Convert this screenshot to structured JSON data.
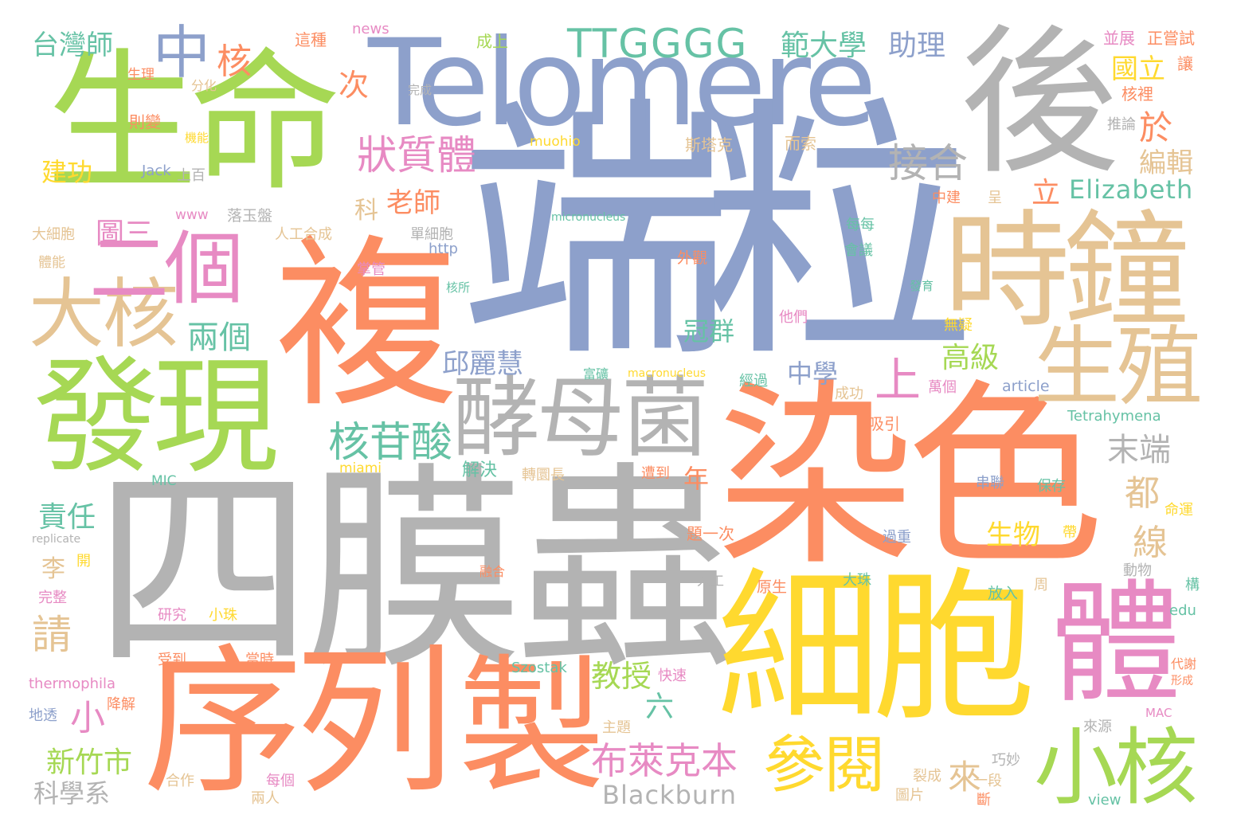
{
  "palette": {
    "green": "#a6d854",
    "orange": "#fc8d62",
    "blue": "#8da0cb",
    "pink": "#e78ac3",
    "yellow": "#ffd92f",
    "tan": "#e5c494",
    "gray": "#b3b3b3",
    "teal": "#66c2a5"
  },
  "words": [
    {
      "text": "端粒",
      "color": "blue"
    },
    {
      "text": "四膜蟲",
      "color": "gray"
    },
    {
      "text": "染色",
      "color": "orange"
    },
    {
      "text": "生命",
      "color": "green"
    },
    {
      "text": "Telomere",
      "color": "blue"
    },
    {
      "text": "後",
      "color": "gray"
    },
    {
      "text": "複",
      "color": "orange"
    },
    {
      "text": "序列",
      "color": "orange"
    },
    {
      "text": "細胞",
      "color": "yellow"
    },
    {
      "text": "時鐘",
      "color": "tan"
    },
    {
      "text": "發現",
      "color": "green"
    },
    {
      "text": "製",
      "color": "orange"
    },
    {
      "text": "體",
      "color": "pink"
    },
    {
      "text": "酵母菌",
      "color": "gray"
    },
    {
      "text": "生殖",
      "color": "tan"
    },
    {
      "text": "小核",
      "color": "green"
    },
    {
      "text": "大核",
      "color": "tan"
    },
    {
      "text": "二個",
      "color": "pink"
    },
    {
      "text": "中",
      "color": "blue"
    },
    {
      "text": "TTGGGG",
      "color": "teal"
    },
    {
      "text": "參閱",
      "color": "yellow"
    },
    {
      "text": "狀質體",
      "color": "pink"
    },
    {
      "text": "核苷酸",
      "color": "teal"
    },
    {
      "text": "布萊克本",
      "color": "pink"
    },
    {
      "text": "Elizabeth",
      "color": "teal"
    },
    {
      "text": "接合",
      "color": "gray"
    },
    {
      "text": "Blackburn",
      "color": "gray"
    },
    {
      "text": "範大學",
      "color": "teal"
    },
    {
      "text": "助理",
      "color": "blue"
    },
    {
      "text": "台灣師",
      "color": "teal"
    },
    {
      "text": "核",
      "color": "orange"
    },
    {
      "text": "次",
      "color": "orange"
    },
    {
      "text": "於",
      "color": "orange"
    },
    {
      "text": "國立",
      "color": "yellow"
    },
    {
      "text": "編輯",
      "color": "tan"
    },
    {
      "text": "老師",
      "color": "orange"
    },
    {
      "text": "建功",
      "color": "yellow"
    },
    {
      "text": "圖三",
      "color": "pink"
    },
    {
      "text": "兩個",
      "color": "teal"
    },
    {
      "text": "冠群",
      "color": "teal"
    },
    {
      "text": "邱麗慧",
      "color": "blue"
    },
    {
      "text": "中學",
      "color": "blue"
    },
    {
      "text": "高級",
      "color": "green"
    },
    {
      "text": "末端",
      "color": "gray"
    },
    {
      "text": "都",
      "color": "tan"
    },
    {
      "text": "線",
      "color": "tan"
    },
    {
      "text": "生物",
      "color": "yellow"
    },
    {
      "text": "上",
      "color": "pink"
    },
    {
      "text": "立",
      "color": "orange"
    },
    {
      "text": "請",
      "color": "tan"
    },
    {
      "text": "責任",
      "color": "teal"
    },
    {
      "text": "教授",
      "color": "green"
    },
    {
      "text": "六",
      "color": "teal"
    },
    {
      "text": "新竹市",
      "color": "green"
    },
    {
      "text": "科學系",
      "color": "gray"
    },
    {
      "text": "來",
      "color": "tan"
    },
    {
      "text": "小",
      "color": "pink"
    },
    {
      "text": "年",
      "color": "orange"
    },
    {
      "text": "解決",
      "color": "teal"
    },
    {
      "text": "李",
      "color": "tan"
    },
    {
      "text": "科",
      "color": "tan"
    },
    {
      "text": "news",
      "color": "pink"
    },
    {
      "text": "成上",
      "color": "green"
    },
    {
      "text": "並展",
      "color": "pink"
    },
    {
      "text": "正嘗試",
      "color": "orange"
    },
    {
      "text": "這種",
      "color": "orange"
    },
    {
      "text": "生理",
      "color": "orange"
    },
    {
      "text": "讓",
      "color": "orange"
    },
    {
      "text": "分化",
      "color": "tan"
    },
    {
      "text": "完成",
      "color": "gray"
    },
    {
      "text": "則變",
      "color": "orange"
    },
    {
      "text": "核裡",
      "color": "orange"
    },
    {
      "text": "機能",
      "color": "yellow"
    },
    {
      "text": "muohio",
      "color": "yellow"
    },
    {
      "text": "斯塔克",
      "color": "tan"
    },
    {
      "text": "而索",
      "color": "tan"
    },
    {
      "text": "推論",
      "color": "gray"
    },
    {
      "text": "Jack",
      "color": "blue"
    },
    {
      "text": "上百",
      "color": "gray"
    },
    {
      "text": "中建",
      "color": "orange"
    },
    {
      "text": "呈",
      "color": "tan"
    },
    {
      "text": "www",
      "color": "pink"
    },
    {
      "text": "落玉盤",
      "color": "gray"
    },
    {
      "text": "micronucleus",
      "color": "teal"
    },
    {
      "text": "大細胞",
      "color": "tan"
    },
    {
      "text": "人工合成",
      "color": "tan"
    },
    {
      "text": "單細胞",
      "color": "gray"
    },
    {
      "text": "每每",
      "color": "teal"
    },
    {
      "text": "http",
      "color": "blue"
    },
    {
      "text": "體能",
      "color": "tan"
    },
    {
      "text": "掌管",
      "color": "pink"
    },
    {
      "text": "會議",
      "color": "teal"
    },
    {
      "text": "外觀",
      "color": "orange"
    },
    {
      "text": "核所",
      "color": "teal"
    },
    {
      "text": "他們",
      "color": "pink"
    },
    {
      "text": "發育",
      "color": "teal"
    },
    {
      "text": "無疑",
      "color": "yellow"
    },
    {
      "text": "富礦",
      "color": "teal"
    },
    {
      "text": "macronucleus",
      "color": "yellow"
    },
    {
      "text": "經過",
      "color": "teal"
    },
    {
      "text": "萬個",
      "color": "pink"
    },
    {
      "text": "成功",
      "color": "tan"
    },
    {
      "text": "article",
      "color": "blue"
    },
    {
      "text": "吸引",
      "color": "orange"
    },
    {
      "text": "Tetrahymena",
      "color": "teal"
    },
    {
      "text": "MIC",
      "color": "teal"
    },
    {
      "text": "miami",
      "color": "yellow"
    },
    {
      "text": "轉圜長",
      "color": "tan"
    },
    {
      "text": "遭到",
      "color": "orange"
    },
    {
      "text": "串聯",
      "color": "blue"
    },
    {
      "text": "保存",
      "color": "teal"
    },
    {
      "text": "命運",
      "color": "yellow"
    },
    {
      "text": "replicate",
      "color": "gray"
    },
    {
      "text": "開",
      "color": "yellow"
    },
    {
      "text": "融合",
      "color": "orange"
    },
    {
      "text": "過重",
      "color": "blue"
    },
    {
      "text": "題一次",
      "color": "orange"
    },
    {
      "text": "帶",
      "color": "yellow"
    },
    {
      "text": "動物",
      "color": "gray"
    },
    {
      "text": "完整",
      "color": "pink"
    },
    {
      "text": "人工",
      "color": "gray"
    },
    {
      "text": "原生",
      "color": "orange"
    },
    {
      "text": "大珠",
      "color": "teal"
    },
    {
      "text": "周",
      "color": "tan"
    },
    {
      "text": "構",
      "color": "teal"
    },
    {
      "text": "研究",
      "color": "pink"
    },
    {
      "text": "小珠",
      "color": "yellow"
    },
    {
      "text": "放入",
      "color": "teal"
    },
    {
      "text": "edu",
      "color": "teal"
    },
    {
      "text": "受到",
      "color": "orange"
    },
    {
      "text": "當時",
      "color": "orange"
    },
    {
      "text": "Szostak",
      "color": "teal"
    },
    {
      "text": "快速",
      "color": "pink"
    },
    {
      "text": "代謝",
      "color": "orange"
    },
    {
      "text": "形成",
      "color": "orange"
    },
    {
      "text": "thermophila",
      "color": "pink"
    },
    {
      "text": "降解",
      "color": "orange"
    },
    {
      "text": "地透",
      "color": "blue"
    },
    {
      "text": "主題",
      "color": "tan"
    },
    {
      "text": "巧妙",
      "color": "gray"
    },
    {
      "text": "來源",
      "color": "gray"
    },
    {
      "text": "MAC",
      "color": "pink"
    },
    {
      "text": "合作",
      "color": "tan"
    },
    {
      "text": "每個",
      "color": "pink"
    },
    {
      "text": "裂成",
      "color": "tan"
    },
    {
      "text": "一段",
      "color": "tan"
    },
    {
      "text": "兩人",
      "color": "tan"
    },
    {
      "text": "圖片",
      "color": "tan"
    },
    {
      "text": "斷",
      "color": "orange"
    },
    {
      "text": "view",
      "color": "teal"
    }
  ]
}
